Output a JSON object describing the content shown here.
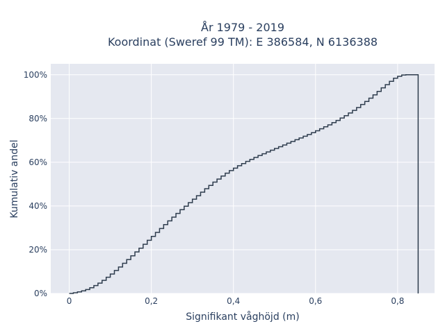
{
  "chart_data": {
    "type": "line",
    "line_shape": "step",
    "title_line1": "År 1979 - 2019",
    "title_line2": "Koordinat (Sweref 99 TM): E 386584, N 6136388",
    "xlabel": "Signifikant våghöjd (m)",
    "ylabel": "Kumulativ andel",
    "xlim": [
      -0.045,
      0.89
    ],
    "ylim": [
      0,
      1.05
    ],
    "xticks": [
      0,
      0.2,
      0.4,
      0.6,
      0.8
    ],
    "xtick_labels": [
      "0",
      "0,2",
      "0,4",
      "0,6",
      "0,8"
    ],
    "yticks": [
      0,
      0.2,
      0.4,
      0.6,
      0.8,
      1.0
    ],
    "ytick_labels": [
      "0%",
      "20%",
      "40%",
      "60%",
      "80%",
      "100%"
    ],
    "grid": true,
    "plot_bgcolor": "#e5e8f0",
    "line_color": "#2e3c4d",
    "series": [
      {
        "x": [
          0,
          0.01,
          0.02,
          0.03,
          0.04,
          0.05,
          0.06,
          0.07,
          0.08,
          0.09,
          0.1,
          0.11,
          0.12,
          0.13,
          0.14,
          0.15,
          0.16,
          0.17,
          0.18,
          0.19,
          0.2,
          0.21,
          0.22,
          0.23,
          0.24,
          0.25,
          0.26,
          0.27,
          0.28,
          0.29,
          0.3,
          0.31,
          0.32,
          0.33,
          0.34,
          0.35,
          0.36,
          0.37,
          0.38,
          0.39,
          0.4,
          0.41,
          0.42,
          0.43,
          0.44,
          0.45,
          0.46,
          0.47,
          0.48,
          0.49,
          0.5,
          0.51,
          0.52,
          0.53,
          0.54,
          0.55,
          0.56,
          0.57,
          0.58,
          0.59,
          0.6,
          0.61,
          0.62,
          0.63,
          0.64,
          0.65,
          0.66,
          0.67,
          0.68,
          0.69,
          0.7,
          0.71,
          0.72,
          0.73,
          0.74,
          0.75,
          0.76,
          0.77,
          0.78,
          0.79,
          0.8,
          0.81,
          0.82,
          0.83,
          0.84,
          0.85
        ],
        "y": [
          0,
          0.003,
          0.007,
          0.012,
          0.018,
          0.026,
          0.036,
          0.047,
          0.06,
          0.074,
          0.089,
          0.105,
          0.121,
          0.138,
          0.155,
          0.172,
          0.19,
          0.207,
          0.225,
          0.243,
          0.261,
          0.279,
          0.297,
          0.315,
          0.332,
          0.349,
          0.366,
          0.383,
          0.399,
          0.415,
          0.431,
          0.447,
          0.463,
          0.479,
          0.494,
          0.509,
          0.523,
          0.537,
          0.55,
          0.562,
          0.573,
          0.584,
          0.594,
          0.604,
          0.613,
          0.622,
          0.631,
          0.639,
          0.647,
          0.655,
          0.663,
          0.671,
          0.679,
          0.687,
          0.695,
          0.703,
          0.711,
          0.719,
          0.727,
          0.735,
          0.744,
          0.753,
          0.762,
          0.771,
          0.781,
          0.791,
          0.802,
          0.813,
          0.825,
          0.837,
          0.85,
          0.864,
          0.878,
          0.893,
          0.908,
          0.924,
          0.94,
          0.955,
          0.97,
          0.984,
          0.993,
          0.999,
          1.0,
          1.0,
          1.0,
          0.0
        ]
      }
    ]
  }
}
